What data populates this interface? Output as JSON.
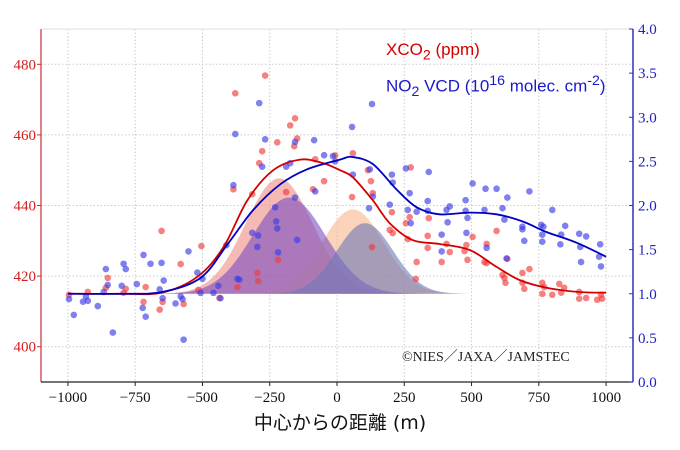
{
  "chart_data": {
    "type": "scatter",
    "xlabel": "中心からの距離 (m)",
    "ylabel_left": "XCO2 (ppm)",
    "ylabel_right": "NO2 VCD (10^16 molec. cm^-2)",
    "xlim": [
      -1100,
      1100
    ],
    "ylim_left": [
      390,
      490
    ],
    "ylim_right": [
      0,
      4.0
    ],
    "x_ticks": [
      -1000,
      -750,
      -500,
      -250,
      0,
      250,
      500,
      750,
      1000
    ],
    "x_tick_labels": [
      "−1000",
      "−750",
      "−500",
      "−250",
      "0",
      "250",
      "500",
      "750",
      "1000"
    ],
    "y_left_ticks": [
      "400",
      "420",
      "440",
      "460",
      "480"
    ],
    "y_right_ticks": [
      "0.0",
      "0.5",
      "1.0",
      "1.5",
      "2.0",
      "2.5",
      "3.0",
      "3.5",
      "4.0"
    ],
    "grid": true,
    "legend": {
      "placement": "top-right",
      "xco2": {
        "main": "XCO",
        "sub": "2",
        "rest": " (ppm)"
      },
      "no2": {
        "main": "NO",
        "sub": "2",
        "mid": " VCD (10",
        "sup": "16",
        "rest": " molec. cm",
        "sup2": "-2",
        "end": ")"
      }
    },
    "annotation": "©NIES／JAXA／JAMSTEC",
    "colors": {
      "red": "#d40000",
      "blue": "#0000c0",
      "red_point": "#f03c3c",
      "blue_point": "#3c3ce6"
    },
    "series": [
      {
        "name": "XCO2 observations",
        "axis": "left",
        "points": [
          [
            -996,
            414.7
          ],
          [
            -926,
            415.5
          ],
          [
            -852,
            419.5
          ],
          [
            -859,
            416.7
          ],
          [
            -785,
            416.4
          ],
          [
            -793,
            415.3
          ],
          [
            -711,
            416.9
          ],
          [
            -719,
            412.7
          ],
          [
            -659,
            410.5
          ],
          [
            -648,
            412.7
          ],
          [
            -652,
            432.8
          ],
          [
            -581,
            423.4
          ],
          [
            -570,
            412.1
          ],
          [
            -504,
            428.5
          ],
          [
            -515,
            416.1
          ],
          [
            -437,
            413.8
          ],
          [
            -370,
            416.9
          ],
          [
            -385,
            444.6
          ],
          [
            -378,
            471.8
          ],
          [
            -267,
            476.8
          ],
          [
            -315,
            443.2
          ],
          [
            -296,
            420.9
          ],
          [
            -293,
            418.6
          ],
          [
            -278,
            455.4
          ],
          [
            -289,
            452.0
          ],
          [
            -222,
            457.9
          ],
          [
            -219,
            424.6
          ],
          [
            -189,
            443.8
          ],
          [
            -174,
            462.7
          ],
          [
            -156,
            464.7
          ],
          [
            -148,
            459.0
          ],
          [
            -159,
            456.8
          ],
          [
            -81,
            453.1
          ],
          [
            -89,
            444.6
          ],
          [
            -48,
            446.9
          ],
          [
            -7,
            454.2
          ],
          [
            59,
            454.8
          ],
          [
            56,
            442.4
          ],
          [
            115,
            450.0
          ],
          [
            126,
            446.9
          ],
          [
            133,
            443.5
          ],
          [
            130,
            428.2
          ],
          [
            204,
            438.1
          ],
          [
            196,
            433.1
          ],
          [
            207,
            432.2
          ],
          [
            256,
            435.0
          ],
          [
            270,
            436.7
          ],
          [
            274,
            450.8
          ],
          [
            263,
            430.5
          ],
          [
            296,
            424.0
          ],
          [
            293,
            419.2
          ],
          [
            341,
            436.4
          ],
          [
            337,
            431.4
          ],
          [
            337,
            428.0
          ],
          [
            389,
            424.0
          ],
          [
            407,
            429.1
          ],
          [
            419,
            426.8
          ],
          [
            474,
            427.1
          ],
          [
            481,
            428.8
          ],
          [
            485,
            424.6
          ],
          [
            504,
            431.1
          ],
          [
            548,
            424.0
          ],
          [
            556,
            429.1
          ],
          [
            556,
            423.7
          ],
          [
            593,
            432.8
          ],
          [
            633,
            424.9
          ],
          [
            615,
            420.3
          ],
          [
            622,
            419.5
          ],
          [
            626,
            418.1
          ],
          [
            689,
            420.9
          ],
          [
            715,
            422.0
          ],
          [
            689,
            418.1
          ],
          [
            696,
            416.4
          ],
          [
            763,
            418.1
          ],
          [
            770,
            416.9
          ],
          [
            763,
            415.0
          ],
          [
            800,
            414.7
          ],
          [
            826,
            417.8
          ],
          [
            833,
            415.3
          ],
          [
            844,
            416.7
          ],
          [
            900,
            415.5
          ],
          [
            900,
            413.6
          ],
          [
            926,
            413.8
          ],
          [
            967,
            413.3
          ],
          [
            981,
            414.7
          ],
          [
            985,
            413.6
          ]
        ]
      },
      {
        "name": "NO2 VCD observations",
        "axis": "right",
        "points": [
          [
            -996,
            0.94
          ],
          [
            -978,
            0.76
          ],
          [
            -944,
            0.91
          ],
          [
            -926,
            0.92
          ],
          [
            -933,
            0.97
          ],
          [
            -889,
            0.86
          ],
          [
            -867,
            1.02
          ],
          [
            -852,
            1.1
          ],
          [
            -859,
            1.28
          ],
          [
            -833,
            0.56
          ],
          [
            -800,
            1.09
          ],
          [
            -793,
            1.34
          ],
          [
            -785,
            1.28
          ],
          [
            -744,
            1.11
          ],
          [
            -722,
            0.84
          ],
          [
            -711,
            0.74
          ],
          [
            -719,
            1.44
          ],
          [
            -693,
            1.34
          ],
          [
            -659,
            1.05
          ],
          [
            -652,
            1.35
          ],
          [
            -644,
            1.15
          ],
          [
            -648,
            0.95
          ],
          [
            -600,
            0.89
          ],
          [
            -581,
            0.97
          ],
          [
            -574,
            0.94
          ],
          [
            -570,
            0.48
          ],
          [
            -552,
            1.48
          ],
          [
            -519,
            1.24
          ],
          [
            -500,
            1.17
          ],
          [
            -507,
            1.01
          ],
          [
            -459,
            1.01
          ],
          [
            -441,
            1.09
          ],
          [
            -433,
            0.95
          ],
          [
            -411,
            1.55
          ],
          [
            -370,
            1.17
          ],
          [
            -363,
            1.16
          ],
          [
            -385,
            2.23
          ],
          [
            -378,
            2.81
          ],
          [
            -315,
            1.69
          ],
          [
            -293,
            1.66
          ],
          [
            -296,
            1.53
          ],
          [
            -289,
            3.16
          ],
          [
            -278,
            2.44
          ],
          [
            -267,
            2.75
          ],
          [
            -230,
            1.98
          ],
          [
            -226,
            1.82
          ],
          [
            -222,
            1.74
          ],
          [
            -219,
            1.47
          ],
          [
            -189,
            2.44
          ],
          [
            -174,
            2.48
          ],
          [
            -156,
            2.72
          ],
          [
            -156,
            2.09
          ],
          [
            -148,
            1.61
          ],
          [
            -85,
            2.74
          ],
          [
            -81,
            2.16
          ],
          [
            -48,
            2.57
          ],
          [
            -15,
            2.56
          ],
          [
            -7,
            2.5
          ],
          [
            56,
            2.89
          ],
          [
            130,
            3.15
          ],
          [
            59,
            2.35
          ],
          [
            122,
            2.41
          ],
          [
            133,
            2.1
          ],
          [
            119,
            1.97
          ],
          [
            204,
            2.35
          ],
          [
            207,
            2.26
          ],
          [
            196,
            2.01
          ],
          [
            256,
            2.42
          ],
          [
            270,
            2.14
          ],
          [
            263,
            1.95
          ],
          [
            274,
            1.8
          ],
          [
            296,
            1.93
          ],
          [
            341,
            2.38
          ],
          [
            337,
            2.05
          ],
          [
            337,
            1.94
          ],
          [
            389,
            1.67
          ],
          [
            389,
            1.48
          ],
          [
            407,
            1.95
          ],
          [
            419,
            1.99
          ],
          [
            411,
            1.81
          ],
          [
            478,
            2.06
          ],
          [
            478,
            1.94
          ],
          [
            481,
            1.69
          ],
          [
            485,
            1.86
          ],
          [
            504,
            2.25
          ],
          [
            548,
            1.95
          ],
          [
            552,
            2.19
          ],
          [
            556,
            1.52
          ],
          [
            593,
            2.19
          ],
          [
            615,
            1.97
          ],
          [
            622,
            1.84
          ],
          [
            633,
            2.09
          ],
          [
            630,
            1.4
          ],
          [
            689,
            1.76
          ],
          [
            689,
            1.73
          ],
          [
            696,
            1.6
          ],
          [
            715,
            2.16
          ],
          [
            759,
            1.78
          ],
          [
            763,
            1.67
          ],
          [
            763,
            1.59
          ],
          [
            767,
            1.76
          ],
          [
            800,
            1.95
          ],
          [
            833,
            1.67
          ],
          [
            830,
            1.56
          ],
          [
            848,
            1.77
          ],
          [
            900,
            1.68
          ],
          [
            904,
            1.53
          ],
          [
            907,
            1.36
          ],
          [
            926,
            1.65
          ],
          [
            978,
            1.56
          ],
          [
            974,
            1.42
          ],
          [
            981,
            1.31
          ]
        ]
      },
      {
        "name": "XCO2 fit",
        "axis": "left",
        "type": "line",
        "points": [
          [
            -1000,
            415
          ],
          [
            -800,
            415
          ],
          [
            -652,
            415.3
          ],
          [
            -519,
            419.8
          ],
          [
            -422,
            428.2
          ],
          [
            -333,
            441.5
          ],
          [
            -237,
            450
          ],
          [
            -137,
            453
          ],
          [
            -52,
            452
          ],
          [
            11,
            450
          ],
          [
            59,
            448
          ],
          [
            133,
            441.5
          ],
          [
            196,
            435
          ],
          [
            281,
            430.2
          ],
          [
            381,
            429.1
          ],
          [
            493,
            427.4
          ],
          [
            593,
            422.6
          ],
          [
            678,
            418.9
          ],
          [
            778,
            416.7
          ],
          [
            900,
            415.5
          ],
          [
            1000,
            415.3
          ]
        ]
      },
      {
        "name": "NO2 VCD fit",
        "axis": "right",
        "type": "line",
        "points": [
          [
            -1000,
            1.0
          ],
          [
            -800,
            1.0
          ],
          [
            -650,
            1.02
          ],
          [
            -507,
            1.18
          ],
          [
            -407,
            1.56
          ],
          [
            -311,
            1.95
          ],
          [
            -211,
            2.24
          ],
          [
            -111,
            2.41
          ],
          [
            11,
            2.52
          ],
          [
            56,
            2.55
          ],
          [
            133,
            2.47
          ],
          [
            222,
            2.18
          ],
          [
            296,
            1.98
          ],
          [
            381,
            1.9
          ],
          [
            493,
            1.92
          ],
          [
            593,
            1.9
          ],
          [
            689,
            1.82
          ],
          [
            778,
            1.7
          ],
          [
            889,
            1.58
          ],
          [
            1000,
            1.42
          ]
        ]
      }
    ],
    "plumes": [
      {
        "name": "XCO2 plume 1",
        "axis": "left",
        "baseline": 415,
        "center": -215,
        "amplitude": 32.7,
        "sigma": 125,
        "color": "#f08c84"
      },
      {
        "name": "XCO2 plume 2",
        "axis": "left",
        "baseline": 415,
        "center": 59,
        "amplitude": 23.9,
        "sigma": 115,
        "color": "#f9b48c"
      },
      {
        "name": "NO2 plume 1",
        "axis": "right",
        "baseline": 1.0,
        "center": -178,
        "amplitude": 1.09,
        "sigma": 135,
        "color": "#7a4fc0"
      },
      {
        "name": "NO2 plume 2",
        "axis": "right",
        "baseline": 1.0,
        "center": 104,
        "amplitude": 0.8,
        "sigma": 105,
        "color": "#6f78b8"
      }
    ]
  }
}
